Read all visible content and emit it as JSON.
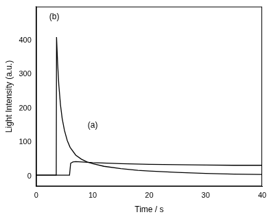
{
  "chart_data": {
    "type": "line",
    "x_label": "Time / s",
    "y_label": "Light Intensity (a.u.)",
    "xlim": [
      0,
      40
    ],
    "xticks": [
      0,
      10,
      20,
      30,
      40
    ],
    "ylim": [
      -30,
      500
    ],
    "yticks": [
      0,
      100,
      200,
      300,
      400
    ],
    "grid": false,
    "series": [
      {
        "name": "(a)",
        "color": "#000000",
        "line_style": "solid",
        "x": [
          0,
          5.9,
          6.1,
          6.5,
          7,
          8,
          10,
          15,
          20,
          25,
          30,
          35,
          40
        ],
        "values": [
          3,
          3,
          38,
          42,
          43,
          42,
          40,
          37,
          35,
          34,
          33,
          32,
          32
        ]
      },
      {
        "name": "(b)",
        "color": "#000000",
        "line_style": "solid",
        "x": [
          0,
          3.55,
          3.6,
          3.8,
          4,
          4.3,
          4.6,
          5,
          5.5,
          6,
          7,
          8,
          9,
          10,
          12,
          15,
          18,
          20,
          25,
          30,
          35,
          40
        ],
        "values": [
          3,
          3,
          410,
          330,
          270,
          210,
          170,
          135,
          105,
          85,
          62,
          50,
          42,
          37,
          29,
          22,
          17,
          15,
          11,
          8,
          6,
          5
        ]
      }
    ],
    "annotations": [
      {
        "text": "(a)",
        "x": 10,
        "y": 150
      },
      {
        "text": "(b)",
        "x": 3.2,
        "y": 470
      }
    ]
  }
}
